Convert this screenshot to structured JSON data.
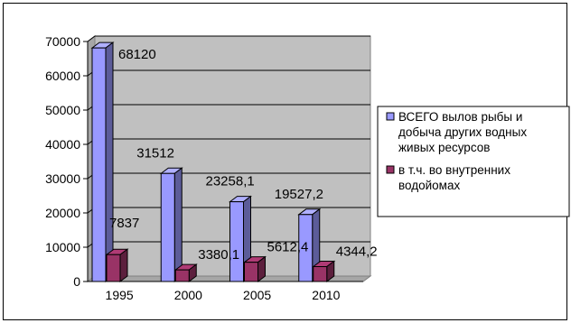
{
  "chart_data": {
    "type": "bar",
    "bar_style": "3d-column",
    "categories": [
      "1995",
      "2000",
      "2005",
      "2010"
    ],
    "series": [
      {
        "name": "ВСЕГО вылов рыбы и добыча других водных живых ресурсов",
        "color": "#9999ff",
        "values": [
          68120,
          31512,
          23258.1,
          19527.2
        ],
        "labels": [
          "68120",
          "31512",
          "23258,1",
          "19527,2"
        ]
      },
      {
        "name": "в т.ч. во внутренних водойомах",
        "color": "#993366",
        "values": [
          7837,
          3380.1,
          5612.4,
          4344.2
        ],
        "labels": [
          "7837",
          "3380,1",
          "5612,4",
          "4344,2"
        ]
      }
    ],
    "ylim": [
      0,
      70000
    ],
    "yticks": [
      "0",
      "10000",
      "20000",
      "30000",
      "40000",
      "50000",
      "60000",
      "70000"
    ],
    "grid": true,
    "plot_background": "#c0c0c0",
    "legend": {
      "position": "right",
      "lines": [
        [
          "ВСЕГО вылов рыбы и",
          "добыча других водных",
          "живых ресурсов"
        ],
        [
          "в т.ч. во внутренних",
          "водойомах"
        ]
      ]
    },
    "title": "",
    "xlabel": "",
    "ylabel": ""
  }
}
